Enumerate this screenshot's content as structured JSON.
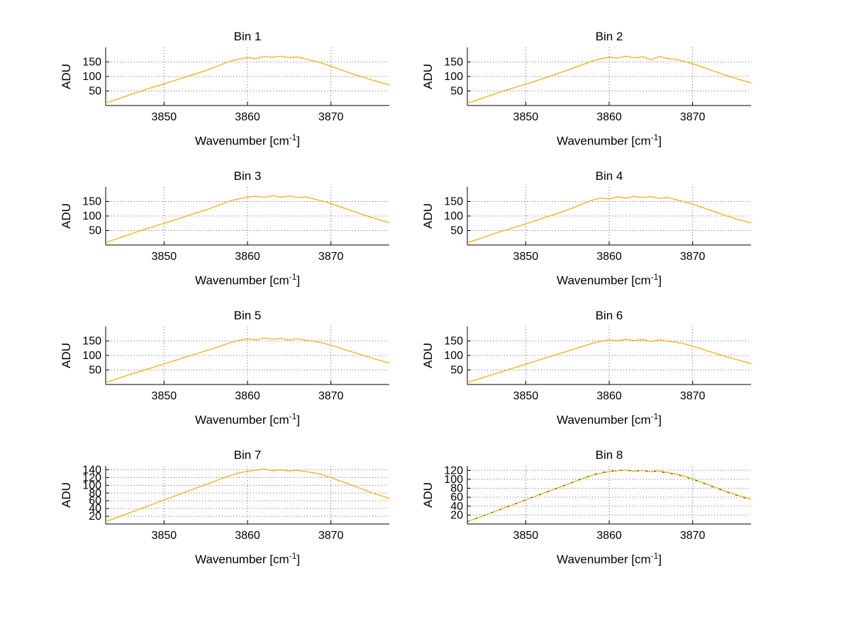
{
  "figure": {
    "background": "#ffffff",
    "grid_color": "#666666",
    "axis_color": "#000000"
  },
  "chart_data": {
    "type": "line",
    "layout": "4x2 subplot grid",
    "grid": true,
    "grid_style": "dotted",
    "legend": "none",
    "x_label": {
      "main": "Wavenumber [cm",
      "sup": "-1",
      "end": "]"
    },
    "xlim": [
      3843,
      3877
    ],
    "xticks": [
      3850,
      3860,
      3870
    ],
    "x": [
      3843,
      3844,
      3845,
      3846,
      3847,
      3848,
      3849,
      3850,
      3851,
      3852,
      3853,
      3854,
      3855,
      3856,
      3857,
      3858,
      3859,
      3860,
      3861,
      3862,
      3863,
      3864,
      3865,
      3866,
      3867,
      3868,
      3869,
      3870,
      3871,
      3872,
      3873,
      3874,
      3875,
      3876,
      3877
    ],
    "subplots": [
      {
        "title": "Bin 1",
        "ylabel": "ADU",
        "ylim": [
          0,
          200
        ],
        "yticks": [
          50,
          100,
          150
        ],
        "series": [
          {
            "name": "spectrum",
            "color": "#ffa500",
            "values": [
              8,
              18,
              28,
              38,
              47,
              57,
              66,
              75,
              84,
              93,
              102,
              111,
              121,
              131,
              143,
              153,
              160,
              165,
              162,
              169,
              166,
              170,
              165,
              167,
              160,
              153,
              145,
              135,
              125,
              115,
              105,
              96,
              87,
              79,
              71
            ]
          }
        ]
      },
      {
        "title": "Bin 2",
        "ylabel": "ADU",
        "ylim": [
          0,
          200
        ],
        "yticks": [
          50,
          100,
          150
        ],
        "series": [
          {
            "name": "spectrum",
            "color": "#ffa500",
            "values": [
              8,
              17,
              27,
              37,
              47,
              56,
              65,
              74,
              83,
              92,
              102,
              112,
              122,
              132,
              143,
              154,
              161,
              166,
              163,
              170,
              164,
              168,
              158,
              169,
              162,
              159,
              152,
              144,
              134,
              124,
              114,
              104,
              95,
              86,
              78
            ]
          }
        ]
      },
      {
        "title": "Bin 3",
        "ylabel": "ADU",
        "ylim": [
          0,
          200
        ],
        "yticks": [
          50,
          100,
          150
        ],
        "series": [
          {
            "name": "spectrum",
            "color": "#ffa500",
            "values": [
              9,
              18,
              28,
              38,
              48,
              57,
              66,
              75,
              84,
              93,
              103,
              112,
              121,
              131,
              142,
              153,
              159,
              165,
              168,
              164,
              170,
              165,
              169,
              163,
              166,
              158,
              151,
              143,
              133,
              123,
              113,
              103,
              94,
              85,
              77
            ]
          }
        ]
      },
      {
        "title": "Bin 4",
        "ylabel": "ADU",
        "ylim": [
          0,
          200
        ],
        "yticks": [
          50,
          100,
          150
        ],
        "series": [
          {
            "name": "spectrum",
            "color": "#ffa500",
            "values": [
              8,
              17,
              27,
              37,
              46,
              55,
              64,
              73,
              82,
              92,
              101,
              111,
              121,
              132,
              144,
              155,
              162,
              158,
              166,
              161,
              168,
              163,
              167,
              160,
              164,
              156,
              149,
              141,
              131,
              121,
              111,
              101,
              92,
              84,
              76
            ]
          }
        ]
      },
      {
        "title": "Bin 5",
        "ylabel": "ADU",
        "ylim": [
          0,
          200
        ],
        "yticks": [
          50,
          100,
          150
        ],
        "series": [
          {
            "name": "spectrum",
            "color": "#ffa500",
            "values": [
              8,
              16,
              26,
              35,
              44,
              53,
              62,
              71,
              80,
              89,
              98,
              107,
              116,
              125,
              135,
              145,
              152,
              157,
              154,
              160,
              156,
              159,
              153,
              158,
              152,
              149,
              143,
              135,
              126,
              117,
              108,
              99,
              90,
              82,
              74
            ]
          }
        ]
      },
      {
        "title": "Bin 6",
        "ylabel": "ADU",
        "ylim": [
          0,
          200
        ],
        "yticks": [
          50,
          100,
          150
        ],
        "series": [
          {
            "name": "spectrum",
            "color": "#ffa500",
            "values": [
              7,
              16,
              25,
              34,
              43,
              52,
              61,
              70,
              79,
              88,
              97,
              106,
              115,
              124,
              133,
              142,
              149,
              154,
              150,
              156,
              151,
              155,
              148,
              154,
              149,
              146,
              140,
              132,
              123,
              114,
              105,
              96,
              88,
              80,
              72
            ]
          }
        ]
      },
      {
        "title": "Bin 7",
        "ylabel": "ADU",
        "ylim": [
          0,
          150
        ],
        "yticks": [
          20,
          40,
          60,
          80,
          100,
          120,
          140
        ],
        "series": [
          {
            "name": "spectrum",
            "color": "#ffa500",
            "values": [
              6,
              14,
              22,
              30,
              38,
              46,
              54,
              62,
              70,
              78,
              86,
              94,
              102,
              110,
              118,
              126,
              132,
              136,
              139,
              141,
              138,
              140,
              137,
              139,
              135,
              132,
              127,
              120,
              112,
              104,
              96,
              88,
              80,
              73,
              66
            ]
          }
        ]
      },
      {
        "title": "Bin 8",
        "ylabel": "ADU",
        "ylim": [
          0,
          130
        ],
        "yticks": [
          20,
          40,
          60,
          80,
          100,
          120
        ],
        "series": [
          {
            "name": "spectrum",
            "color": "#ffa500",
            "values": [
              5,
              12,
              19,
              26,
              33,
              40,
              47,
              54,
              61,
              68,
              75,
              82,
              89,
              96,
              103,
              109,
              114,
              117,
              119,
              121,
              118,
              120,
              117,
              119,
              115,
              112,
              107,
              101,
              94,
              87,
              80,
              73,
              67,
              61,
              55
            ]
          },
          {
            "name": "spectrum-overlay",
            "color": "#007700",
            "dash": "3 9",
            "values": [
              5,
              12,
              19,
              26,
              33,
              40,
              47,
              54,
              61,
              68,
              75,
              82,
              89,
              96,
              103,
              110,
              115,
              118,
              121,
              119,
              120,
              118,
              119,
              117,
              114,
              111,
              106,
              100,
              93,
              86,
              79,
              72,
              66,
              60,
              54
            ]
          }
        ]
      }
    ]
  }
}
